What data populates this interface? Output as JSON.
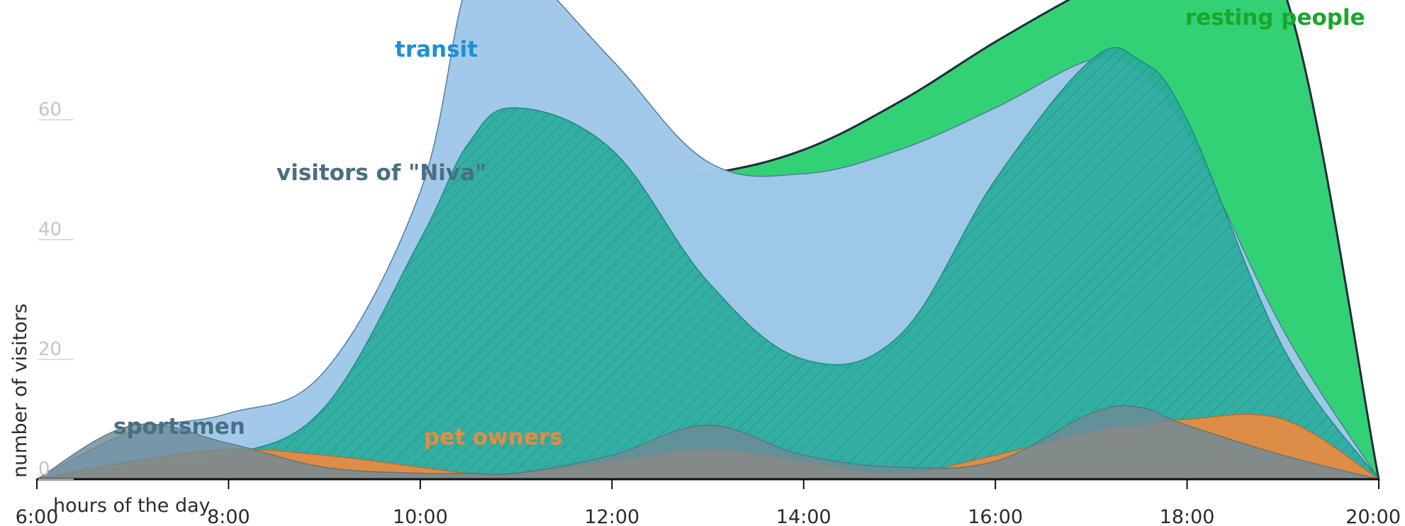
{
  "chart_data": {
    "type": "area",
    "title": "",
    "xlabel": "hours of the day",
    "ylabel": "number of visitors",
    "xlim": [
      6,
      20
    ],
    "ylim": [
      0,
      80
    ],
    "x_ticks": [
      "6:00",
      "8:00",
      "10:00",
      "12:00",
      "14:00",
      "16:00",
      "18:00",
      "20:00"
    ],
    "y_ticks": [
      "0",
      "20",
      "40",
      "60"
    ],
    "grid": false,
    "legend": "labels placed on the areas",
    "x_hours": [
      6,
      7,
      8,
      9,
      10,
      10.5,
      11,
      12,
      13,
      14,
      15,
      16,
      17,
      17.5,
      18,
      19,
      20
    ],
    "series": [
      {
        "name": "resting people",
        "color": "#33d176",
        "values": [
          0,
          3,
          5,
          10,
          20,
          34,
          45,
          50,
          51,
          55,
          63,
          73,
          82,
          85,
          86,
          82,
          0
        ]
      },
      {
        "name": "transit",
        "color": "#a0c8ea",
        "values": [
          0,
          8,
          11,
          18,
          48,
          83,
          86,
          70,
          53,
          51,
          55,
          62,
          70,
          68,
          58,
          25,
          0
        ]
      },
      {
        "name": "visitors of \"Niva\"",
        "color": "#2aab9c",
        "hatched": true,
        "values": [
          0,
          2,
          4,
          12,
          40,
          56,
          62,
          55,
          33,
          20,
          24,
          50,
          70,
          70,
          60,
          22,
          0
        ]
      },
      {
        "name": "pet owners",
        "color": "#ec8a3e",
        "values": [
          0,
          3,
          5,
          4,
          2,
          1,
          1,
          3,
          5,
          3,
          1,
          4,
          8,
          9,
          10,
          10,
          0
        ]
      },
      {
        "name": "sportsmen",
        "color": "#6e8b99",
        "values": [
          0,
          9,
          6,
          2,
          1,
          1,
          1,
          4,
          9,
          4,
          2,
          3,
          11,
          12,
          9,
          4,
          0
        ]
      }
    ]
  },
  "labels": {
    "resting": "resting people",
    "transit": "transit",
    "niva": "visitors of \"Niva\"",
    "pet": "pet owners",
    "sport": "sportsmen"
  },
  "colors": {
    "resting_text": "#17a82a",
    "transit_text": "#1e8fd4",
    "niva_text": "#4a6f82",
    "pet_text": "#ec8a3e",
    "sport_text": "#4a6f82"
  }
}
